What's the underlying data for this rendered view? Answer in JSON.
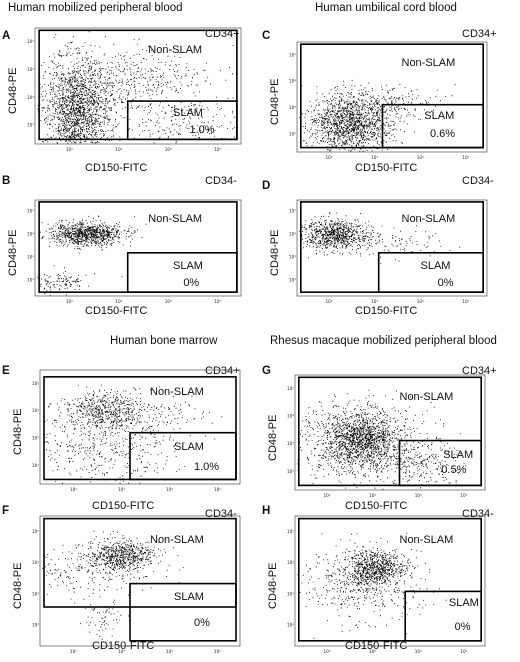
{
  "section_titles": {
    "top_left": "Human mobilized peripheral blood",
    "top_right": "Human umbilical cord blood",
    "bottom_left": "Human bone marrow",
    "bottom_right": "Rhesus macaque mobilized peripheral blood"
  },
  "common": {
    "ylabel": "CD48-PE",
    "xlabel": "CD150-FITC",
    "gate_upper": "Non-SLAM",
    "gate_lower": "SLAM",
    "ticks": [
      "10²",
      "10³",
      "10⁴",
      "10⁵"
    ]
  },
  "panels": [
    {
      "letter": "A",
      "cd": "CD34+",
      "slam_pct": "1.0%"
    },
    {
      "letter": "B",
      "cd": "CD34-",
      "slam_pct": "0%"
    },
    {
      "letter": "C",
      "cd": "CD34+",
      "slam_pct": "0.6%"
    },
    {
      "letter": "D",
      "cd": "CD34-",
      "slam_pct": "0%"
    },
    {
      "letter": "E",
      "cd": "CD34+",
      "slam_pct": "1.0%"
    },
    {
      "letter": "F",
      "cd": "CD34-",
      "slam_pct": "0%"
    },
    {
      "letter": "G",
      "cd": "CD34+",
      "slam_pct": "0.5%"
    },
    {
      "letter": "H",
      "cd": "CD34-",
      "slam_pct": "0%"
    }
  ]
}
